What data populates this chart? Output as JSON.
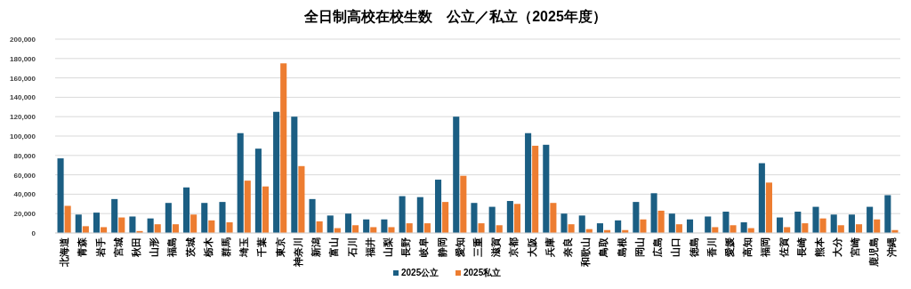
{
  "chart_data": {
    "type": "bar",
    "title": "全日制高校在校生数　公立／私立（2025年度）",
    "categories": [
      "北海道",
      "青森",
      "岩手",
      "宮城",
      "秋田",
      "山形",
      "福島",
      "茨城",
      "栃木",
      "群馬",
      "埼玉",
      "千葉",
      "東京",
      "神奈川",
      "新潟",
      "富山",
      "石川",
      "福井",
      "山梨",
      "長野",
      "岐阜",
      "静岡",
      "愛知",
      "三重",
      "滋賀",
      "京都",
      "大阪",
      "兵庫",
      "奈良",
      "和歌山",
      "鳥取",
      "島根",
      "岡山",
      "広島",
      "山口",
      "徳島",
      "香川",
      "愛媛",
      "高知",
      "福岡",
      "佐賀",
      "長崎",
      "熊本",
      "大分",
      "宮崎",
      "鹿児島",
      "沖縄"
    ],
    "series": [
      {
        "name": "2025公立",
        "color": "#1b5e83",
        "values": [
          77000,
          19000,
          21000,
          35000,
          17000,
          15000,
          31000,
          47000,
          31000,
          32000,
          103000,
          87000,
          125000,
          120000,
          35000,
          18000,
          20000,
          14000,
          14000,
          38000,
          37000,
          55000,
          120000,
          31000,
          27000,
          33000,
          103000,
          91000,
          20000,
          18000,
          10000,
          13000,
          32000,
          41000,
          20000,
          14000,
          17000,
          22000,
          11000,
          72000,
          16000,
          22000,
          27000,
          19000,
          19000,
          27000,
          39000
        ]
      },
      {
        "name": "2025私立",
        "color": "#ed7d31",
        "values": [
          28000,
          7000,
          6000,
          16000,
          2000,
          9000,
          9000,
          19000,
          13000,
          11000,
          54000,
          48000,
          175000,
          69000,
          12000,
          5000,
          8000,
          6000,
          6000,
          10000,
          10000,
          32000,
          59000,
          10000,
          8000,
          30000,
          90000,
          31000,
          9000,
          4000,
          3000,
          3000,
          14000,
          23000,
          9000,
          0,
          6000,
          8000,
          5000,
          52000,
          6000,
          10000,
          15000,
          8000,
          9000,
          14000,
          3000
        ]
      }
    ],
    "ylim": [
      0,
      200000
    ],
    "yticks": [
      0,
      {
        "value": 20000,
        "label": "20,000"
      },
      {
        "value": 40000,
        "label": "40,000"
      },
      {
        "value": 60000,
        "label": "60,000"
      },
      {
        "value": 80000,
        "label": "80,000"
      },
      {
        "value": 100000,
        "label": "100,000"
      },
      {
        "value": 120000,
        "label": "120,000"
      },
      {
        "value": 140000,
        "label": "140,000"
      },
      {
        "value": 160000,
        "label": "160,000"
      },
      {
        "value": 180000,
        "label": "180,000"
      },
      {
        "value": 200000,
        "label": "200,000"
      }
    ],
    "grid": "y",
    "legend": "bottom"
  }
}
